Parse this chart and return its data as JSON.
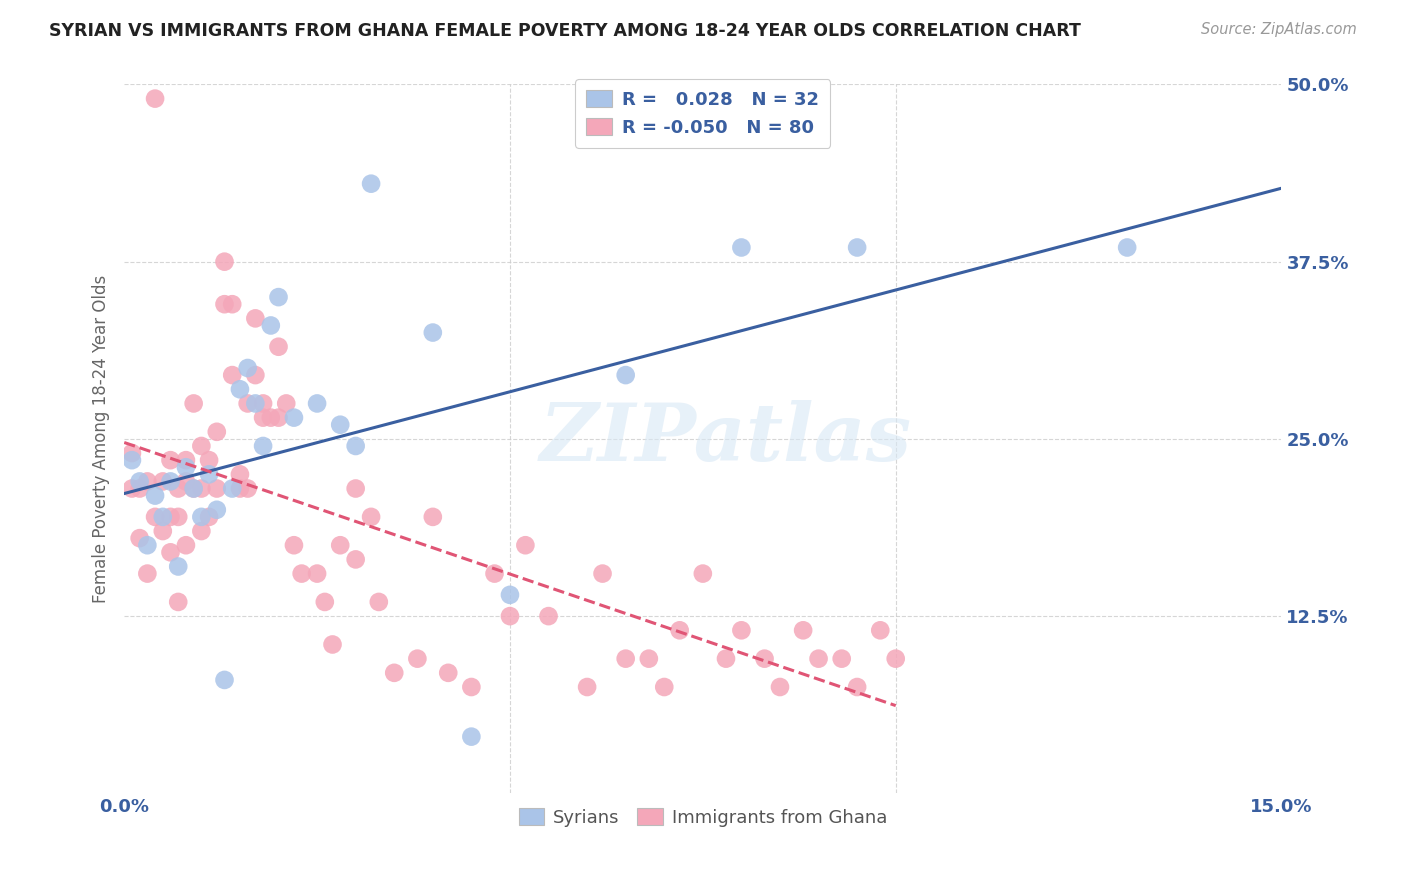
{
  "title": "SYRIAN VS IMMIGRANTS FROM GHANA FEMALE POVERTY AMONG 18-24 YEAR OLDS CORRELATION CHART",
  "source": "Source: ZipAtlas.com",
  "ylabel": "Female Poverty Among 18-24 Year Olds",
  "xlim": [
    0.0,
    0.15
  ],
  "ylim": [
    0.0,
    0.5
  ],
  "xtick_labels": [
    "0.0%",
    "15.0%"
  ],
  "ytick_labels": [
    "12.5%",
    "25.0%",
    "37.5%",
    "50.0%"
  ],
  "ytick_values": [
    0.125,
    0.25,
    0.375,
    0.5
  ],
  "xtick_values": [
    0.0,
    0.15
  ],
  "background_color": "#ffffff",
  "grid_color": "#cccccc",
  "legend_R_syrian": "0.028",
  "legend_N_syrian": "32",
  "legend_R_ghana": "-0.050",
  "legend_N_ghana": "80",
  "syrian_color": "#aac4e8",
  "ghana_color": "#f4a7b9",
  "syrian_line_color": "#3a5fa0",
  "ghana_line_color": "#e05575",
  "watermark": "ZIPatlas",
  "syrians_label": "Syrians",
  "ghana_label": "Immigrants from Ghana",
  "syrian_points_x": [
    0.001,
    0.002,
    0.003,
    0.004,
    0.005,
    0.006,
    0.007,
    0.008,
    0.009,
    0.01,
    0.011,
    0.012,
    0.013,
    0.014,
    0.015,
    0.016,
    0.017,
    0.018,
    0.019,
    0.02,
    0.022,
    0.025,
    0.028,
    0.03,
    0.032,
    0.04,
    0.045,
    0.05,
    0.065,
    0.08,
    0.095,
    0.13
  ],
  "syrian_points_y": [
    0.235,
    0.22,
    0.175,
    0.21,
    0.195,
    0.22,
    0.16,
    0.23,
    0.215,
    0.195,
    0.225,
    0.2,
    0.08,
    0.215,
    0.285,
    0.3,
    0.275,
    0.245,
    0.33,
    0.35,
    0.265,
    0.275,
    0.26,
    0.245,
    0.43,
    0.325,
    0.04,
    0.14,
    0.295,
    0.385,
    0.385,
    0.385
  ],
  "ghana_points_x": [
    0.001,
    0.001,
    0.002,
    0.002,
    0.003,
    0.003,
    0.004,
    0.004,
    0.005,
    0.005,
    0.006,
    0.006,
    0.006,
    0.007,
    0.007,
    0.007,
    0.008,
    0.008,
    0.008,
    0.009,
    0.009,
    0.01,
    0.01,
    0.01,
    0.011,
    0.011,
    0.012,
    0.012,
    0.013,
    0.013,
    0.014,
    0.014,
    0.015,
    0.015,
    0.016,
    0.016,
    0.017,
    0.017,
    0.018,
    0.018,
    0.019,
    0.02,
    0.02,
    0.021,
    0.022,
    0.023,
    0.025,
    0.026,
    0.027,
    0.028,
    0.03,
    0.03,
    0.032,
    0.033,
    0.035,
    0.038,
    0.04,
    0.042,
    0.045,
    0.048,
    0.05,
    0.052,
    0.055,
    0.06,
    0.062,
    0.065,
    0.068,
    0.07,
    0.072,
    0.075,
    0.078,
    0.08,
    0.083,
    0.085,
    0.088,
    0.09,
    0.093,
    0.095,
    0.098,
    0.1
  ],
  "ghana_points_y": [
    0.24,
    0.215,
    0.18,
    0.215,
    0.22,
    0.155,
    0.195,
    0.49,
    0.22,
    0.185,
    0.17,
    0.235,
    0.195,
    0.195,
    0.135,
    0.215,
    0.22,
    0.175,
    0.235,
    0.275,
    0.215,
    0.215,
    0.185,
    0.245,
    0.235,
    0.195,
    0.255,
    0.215,
    0.345,
    0.375,
    0.295,
    0.345,
    0.225,
    0.215,
    0.215,
    0.275,
    0.335,
    0.295,
    0.265,
    0.275,
    0.265,
    0.265,
    0.315,
    0.275,
    0.175,
    0.155,
    0.155,
    0.135,
    0.105,
    0.175,
    0.165,
    0.215,
    0.195,
    0.135,
    0.085,
    0.095,
    0.195,
    0.085,
    0.075,
    0.155,
    0.125,
    0.175,
    0.125,
    0.075,
    0.155,
    0.095,
    0.095,
    0.075,
    0.115,
    0.155,
    0.095,
    0.115,
    0.095,
    0.075,
    0.115,
    0.095,
    0.095,
    0.075,
    0.115,
    0.095
  ]
}
